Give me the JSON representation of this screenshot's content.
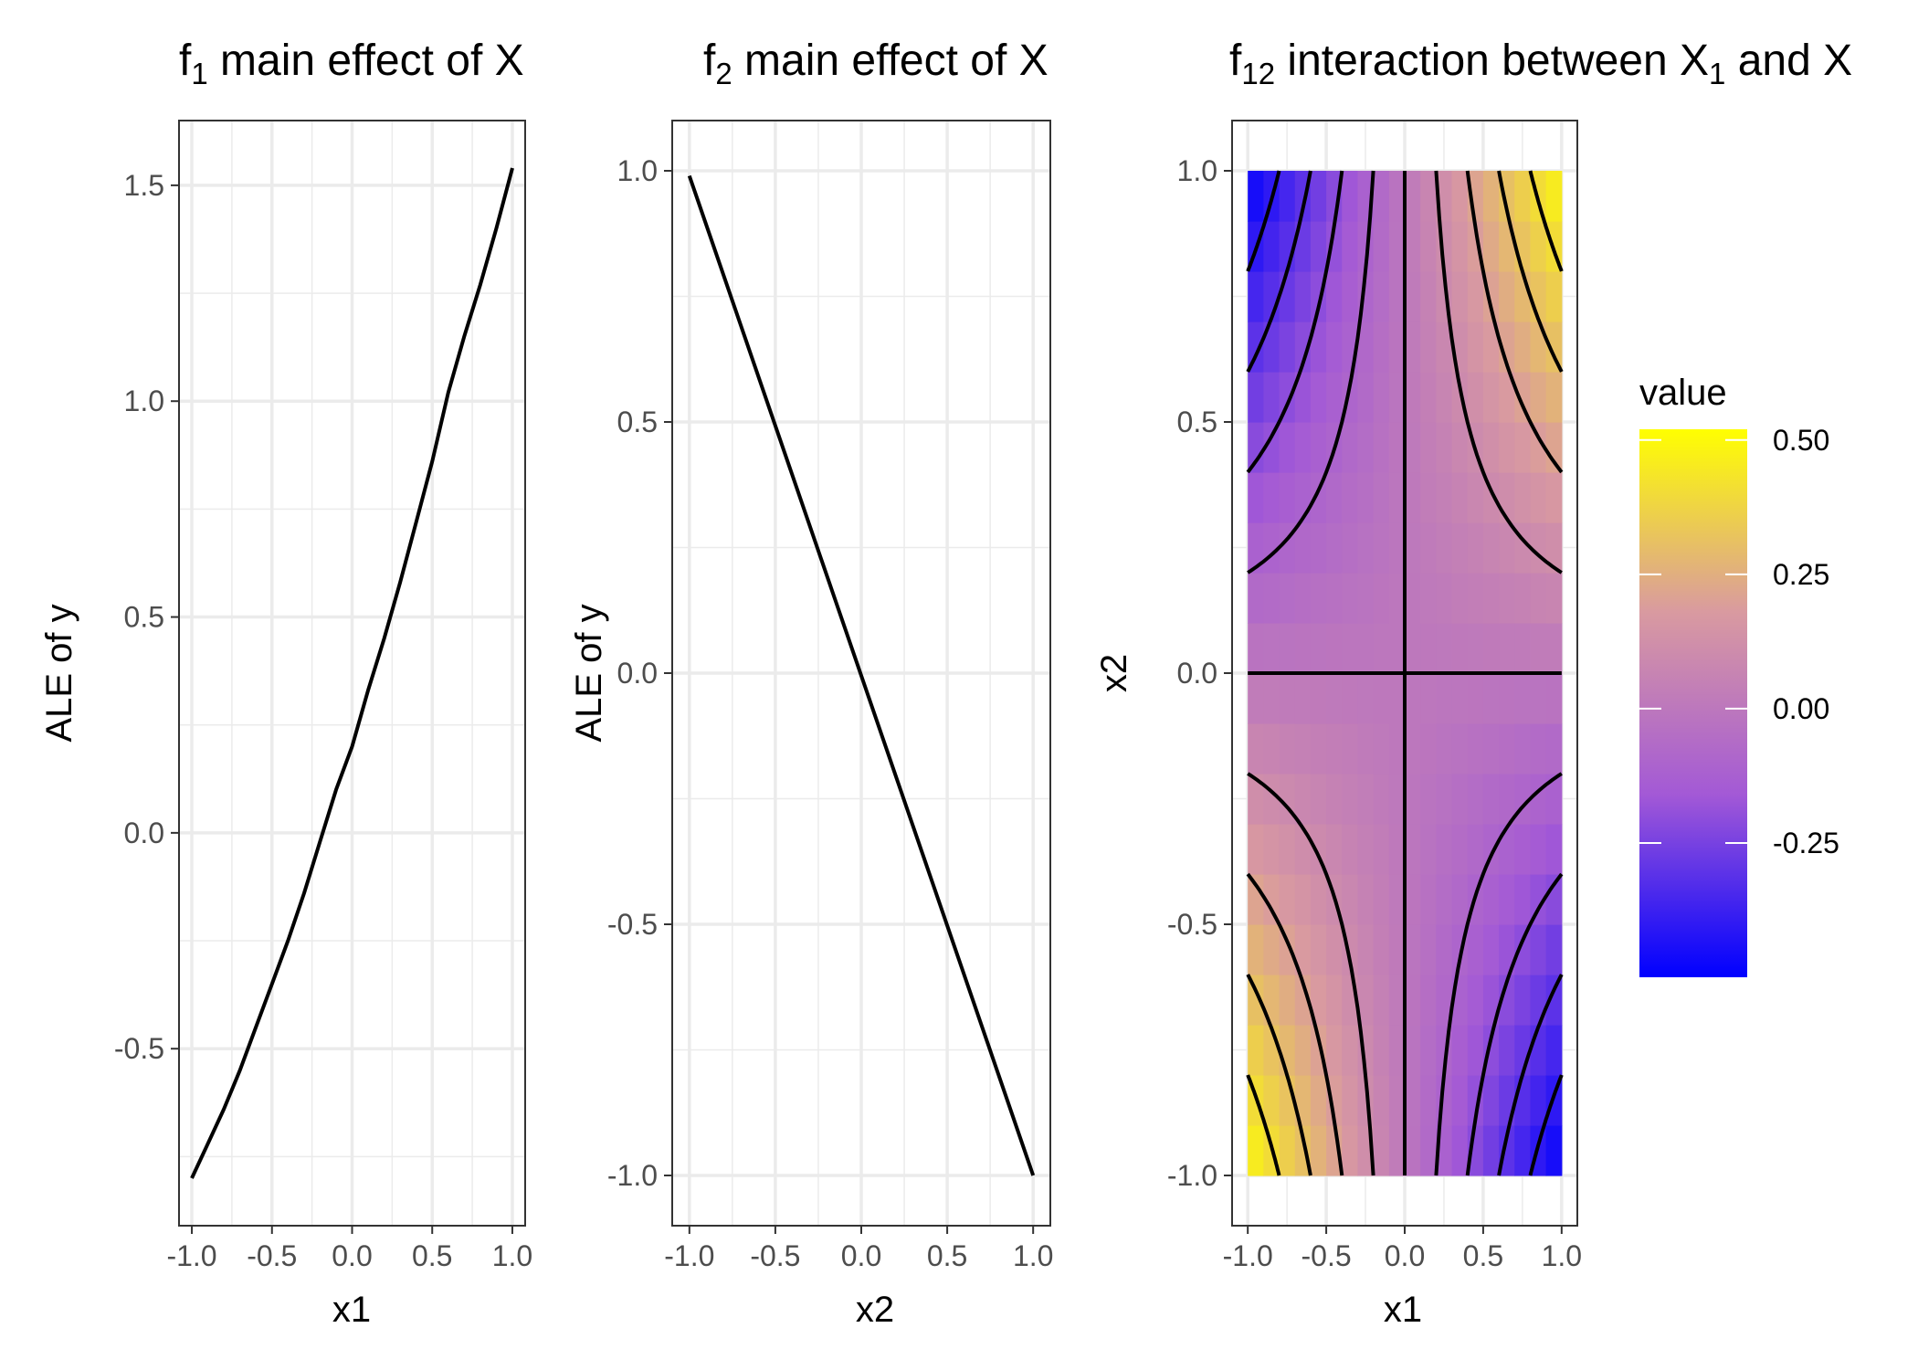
{
  "chart_data": [
    {
      "type": "line",
      "title": "f",
      "title_subscript": "1",
      "title_rest": " main effect of X",
      "xlabel": "x1",
      "ylabel": "ALE of y",
      "xlim": [
        -1.08,
        1.08
      ],
      "ylim": [
        -0.91,
        1.65
      ],
      "xticks": [
        -1.0,
        -0.5,
        0.0,
        0.5,
        1.0
      ],
      "xtick_labels": [
        "-1.0",
        "-0.5",
        "0.0",
        "0.5",
        "1.0"
      ],
      "yticks": [
        -0.5,
        0.0,
        0.5,
        1.0,
        1.5
      ],
      "ytick_labels": [
        "-0.5",
        "0.0",
        "0.5",
        "1.0",
        "1.5"
      ],
      "grid": true,
      "series": [
        {
          "x": [
            -1.0,
            -0.9,
            -0.8,
            -0.7,
            -0.6,
            -0.5,
            -0.4,
            -0.3,
            -0.2,
            -0.1,
            0.0,
            0.1,
            0.2,
            0.3,
            0.4,
            0.5,
            0.6,
            0.7,
            0.8,
            0.9,
            1.0
          ],
          "y": [
            -0.8,
            -0.72,
            -0.64,
            -0.55,
            -0.45,
            -0.35,
            -0.25,
            -0.14,
            -0.02,
            0.1,
            0.2,
            0.33,
            0.45,
            0.58,
            0.72,
            0.86,
            1.02,
            1.15,
            1.27,
            1.4,
            1.54
          ]
        }
      ]
    },
    {
      "type": "line",
      "title": "f",
      "title_subscript": "2",
      "title_rest": " main effect of X",
      "xlabel": "x2",
      "ylabel": "ALE of y",
      "xlim": [
        -1.1,
        1.1
      ],
      "ylim": [
        -1.1,
        1.1
      ],
      "xticks": [
        -1.0,
        -0.5,
        0.0,
        0.5,
        1.0
      ],
      "xtick_labels": [
        "-1.0",
        "-0.5",
        "0.0",
        "0.5",
        "1.0"
      ],
      "yticks": [
        -1.0,
        -0.5,
        0.0,
        0.5,
        1.0
      ],
      "ytick_labels": [
        "-1.0",
        "-0.5",
        "0.0",
        "0.5",
        "1.0"
      ],
      "grid": true,
      "series": [
        {
          "x": [
            -1.0,
            1.0
          ],
          "y": [
            0.99,
            -1.0
          ]
        }
      ]
    },
    {
      "type": "heatmap",
      "title": "f",
      "title_subscript": "12",
      "title_rest": " interaction between X",
      "title_subscript2": "1",
      "title_rest2": " and X",
      "xlabel": "x1",
      "ylabel": "x2",
      "xlim": [
        -1.1,
        1.1
      ],
      "ylim": [
        -1.1,
        1.1
      ],
      "xticks": [
        -1.0,
        -0.5,
        0.0,
        0.5,
        1.0
      ],
      "xtick_labels": [
        "-1.0",
        "-0.5",
        "0.0",
        "0.5",
        "1.0"
      ],
      "yticks": [
        -1.0,
        -0.5,
        0.0,
        0.5,
        1.0
      ],
      "ytick_labels": [
        "-1.0",
        "-0.5",
        "0.0",
        "0.5",
        "1.0"
      ],
      "grid": true,
      "value_function": "0.5*x1*x2",
      "grid_cells": 20,
      "contour_levels": [
        -0.4,
        -0.3,
        -0.2,
        -0.1,
        0.0,
        0.1,
        0.2,
        0.3,
        0.4,
        0.5
      ],
      "legend": {
        "title": "value",
        "position": "right",
        "range": [
          -0.5,
          0.52
        ],
        "ticks": [
          0.5,
          0.25,
          0.0,
          -0.25
        ],
        "tick_labels": [
          "0.50",
          "0.25",
          "0.00",
          "-0.25"
        ],
        "colors": [
          "#0000ff",
          "#a359d6",
          "#d99aa0",
          "#ffff00"
        ]
      }
    }
  ]
}
